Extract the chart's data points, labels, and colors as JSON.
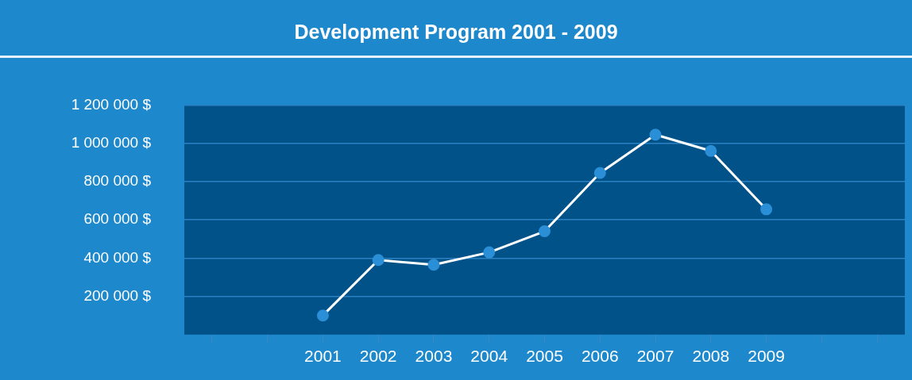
{
  "chart_data": {
    "type": "line",
    "title": "Development Program 2001 - 2009",
    "categories": [
      null,
      null,
      "2001",
      "2002",
      "2003",
      "2004",
      "2005",
      "2006",
      "2007",
      "2008",
      "2009",
      null,
      null
    ],
    "series": [
      {
        "color": "#ffffff",
        "values": [
          null,
          null,
          100000,
          390000,
          365000,
          430000,
          540000,
          845000,
          1045000,
          960000,
          655000,
          null,
          null
        ]
      }
    ],
    "ylim": [
      0,
      1200000
    ],
    "yticks": [
      {
        "value": 200000,
        "label": "200 000 $"
      },
      {
        "value": 400000,
        "label": "400 000 $"
      },
      {
        "value": 600000,
        "label": "600 000 $"
      },
      {
        "value": 800000,
        "label": "800 000 $"
      },
      {
        "value": 1000000,
        "label": "1 000 000 $"
      },
      {
        "value": 1200000,
        "label": "1 200 000 $"
      }
    ],
    "grid": "y",
    "marker": "circle",
    "line_style": "solid"
  }
}
